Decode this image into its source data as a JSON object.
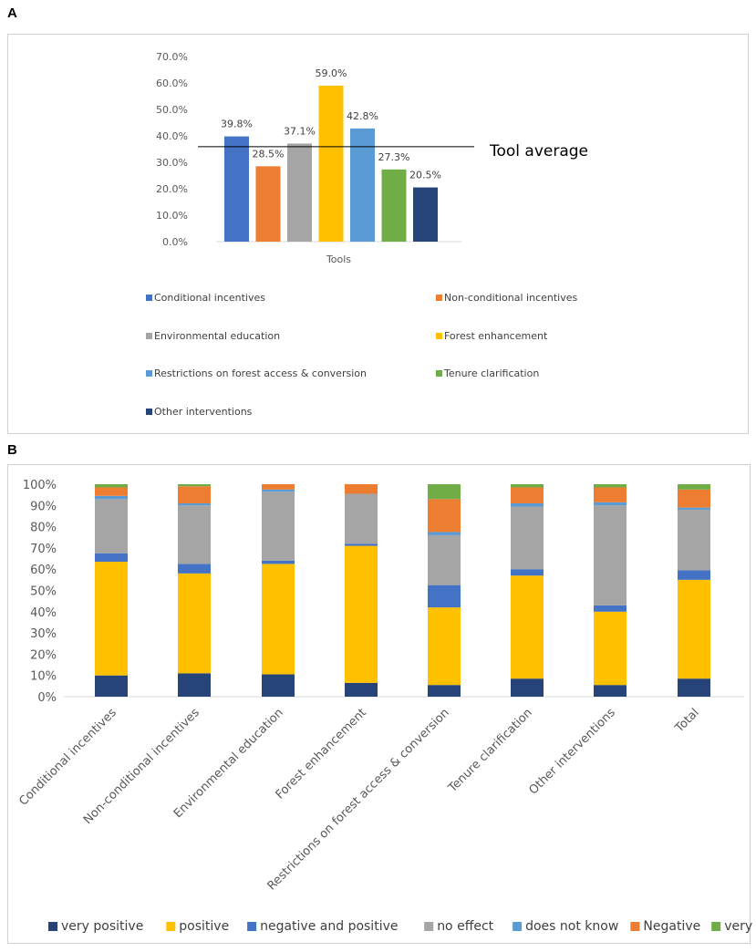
{
  "panels": {
    "a_label": "A",
    "b_label": "B"
  },
  "chart_data": [
    {
      "type": "bar",
      "title": "",
      "xlabel": "Tools",
      "ylabel": "",
      "ylim": [
        0,
        70
      ],
      "yticks": [
        "0.0%",
        "10.0%",
        "20.0%",
        "30.0%",
        "40.0%",
        "50.0%",
        "60.0%",
        "70.0%"
      ],
      "categories": [
        "Tools"
      ],
      "series": [
        {
          "name": "Conditional incentives",
          "value": 39.8,
          "label": "39.8%",
          "color": "#4472C4"
        },
        {
          "name": "Non-conditional incentives",
          "value": 28.5,
          "label": "28.5%",
          "color": "#ED7D31"
        },
        {
          "name": "Environmental education",
          "value": 37.1,
          "label": "37.1%",
          "color": "#A5A5A5"
        },
        {
          "name": "Forest enhancement",
          "value": 59.0,
          "label": "59.0%",
          "color": "#FFC000"
        },
        {
          "name": "Restrictions on forest access & conversion",
          "value": 42.8,
          "label": "42.8%",
          "color": "#5B9BD5"
        },
        {
          "name": "Tenure clarification",
          "value": 27.3,
          "label": "27.3%",
          "color": "#70AD47"
        },
        {
          "name": "Other interventions",
          "value": 20.5,
          "label": "20.5%",
          "color": "#264478"
        }
      ],
      "annotation": {
        "text": "Tool average",
        "value": 35.9
      }
    },
    {
      "type": "bar",
      "stacked": true,
      "ylim": [
        0,
        100
      ],
      "yticks": [
        "0%",
        "10%",
        "20%",
        "30%",
        "40%",
        "50%",
        "60%",
        "70%",
        "80%",
        "90%",
        "100%"
      ],
      "categories": [
        "Conditional incentives",
        "Non-conditional incentives",
        "Environmental education",
        "Forest enhancement",
        "Restrictions on forest access & conversion",
        "Tenure clarification",
        "Other interventions",
        "Total"
      ],
      "legend_position": "bottom",
      "series": [
        {
          "name": "very positive",
          "color": "#264478",
          "values": [
            10,
            11,
            10.5,
            6.5,
            5.5,
            8.5,
            5.5,
            8.5
          ]
        },
        {
          "name": "positive",
          "color": "#FFC000",
          "values": [
            53.5,
            47,
            52,
            64.5,
            36.5,
            48.5,
            34.5,
            46.5
          ]
        },
        {
          "name": "negative and positive",
          "color": "#4472C4",
          "values": [
            4,
            4.5,
            1.5,
            1,
            10.5,
            3,
            3,
            4.5
          ]
        },
        {
          "name": "no effect",
          "color": "#A5A5A5",
          "values": [
            25.5,
            27.5,
            32.5,
            23.5,
            23.5,
            29.5,
            47,
            28.5
          ]
        },
        {
          "name": "does not know",
          "color": "#5B9BD5",
          "values": [
            1.5,
            1,
            1,
            0,
            1.5,
            1.5,
            1.5,
            1
          ]
        },
        {
          "name": "Negative",
          "color": "#ED7D31",
          "values": [
            4,
            8,
            2.5,
            4.5,
            15.5,
            7.5,
            7,
            8.5
          ]
        },
        {
          "name": "very negative",
          "color": "#70AD47",
          "values": [
            1.5,
            1,
            0,
            0,
            7,
            1.5,
            1.5,
            2.5
          ]
        }
      ]
    }
  ]
}
